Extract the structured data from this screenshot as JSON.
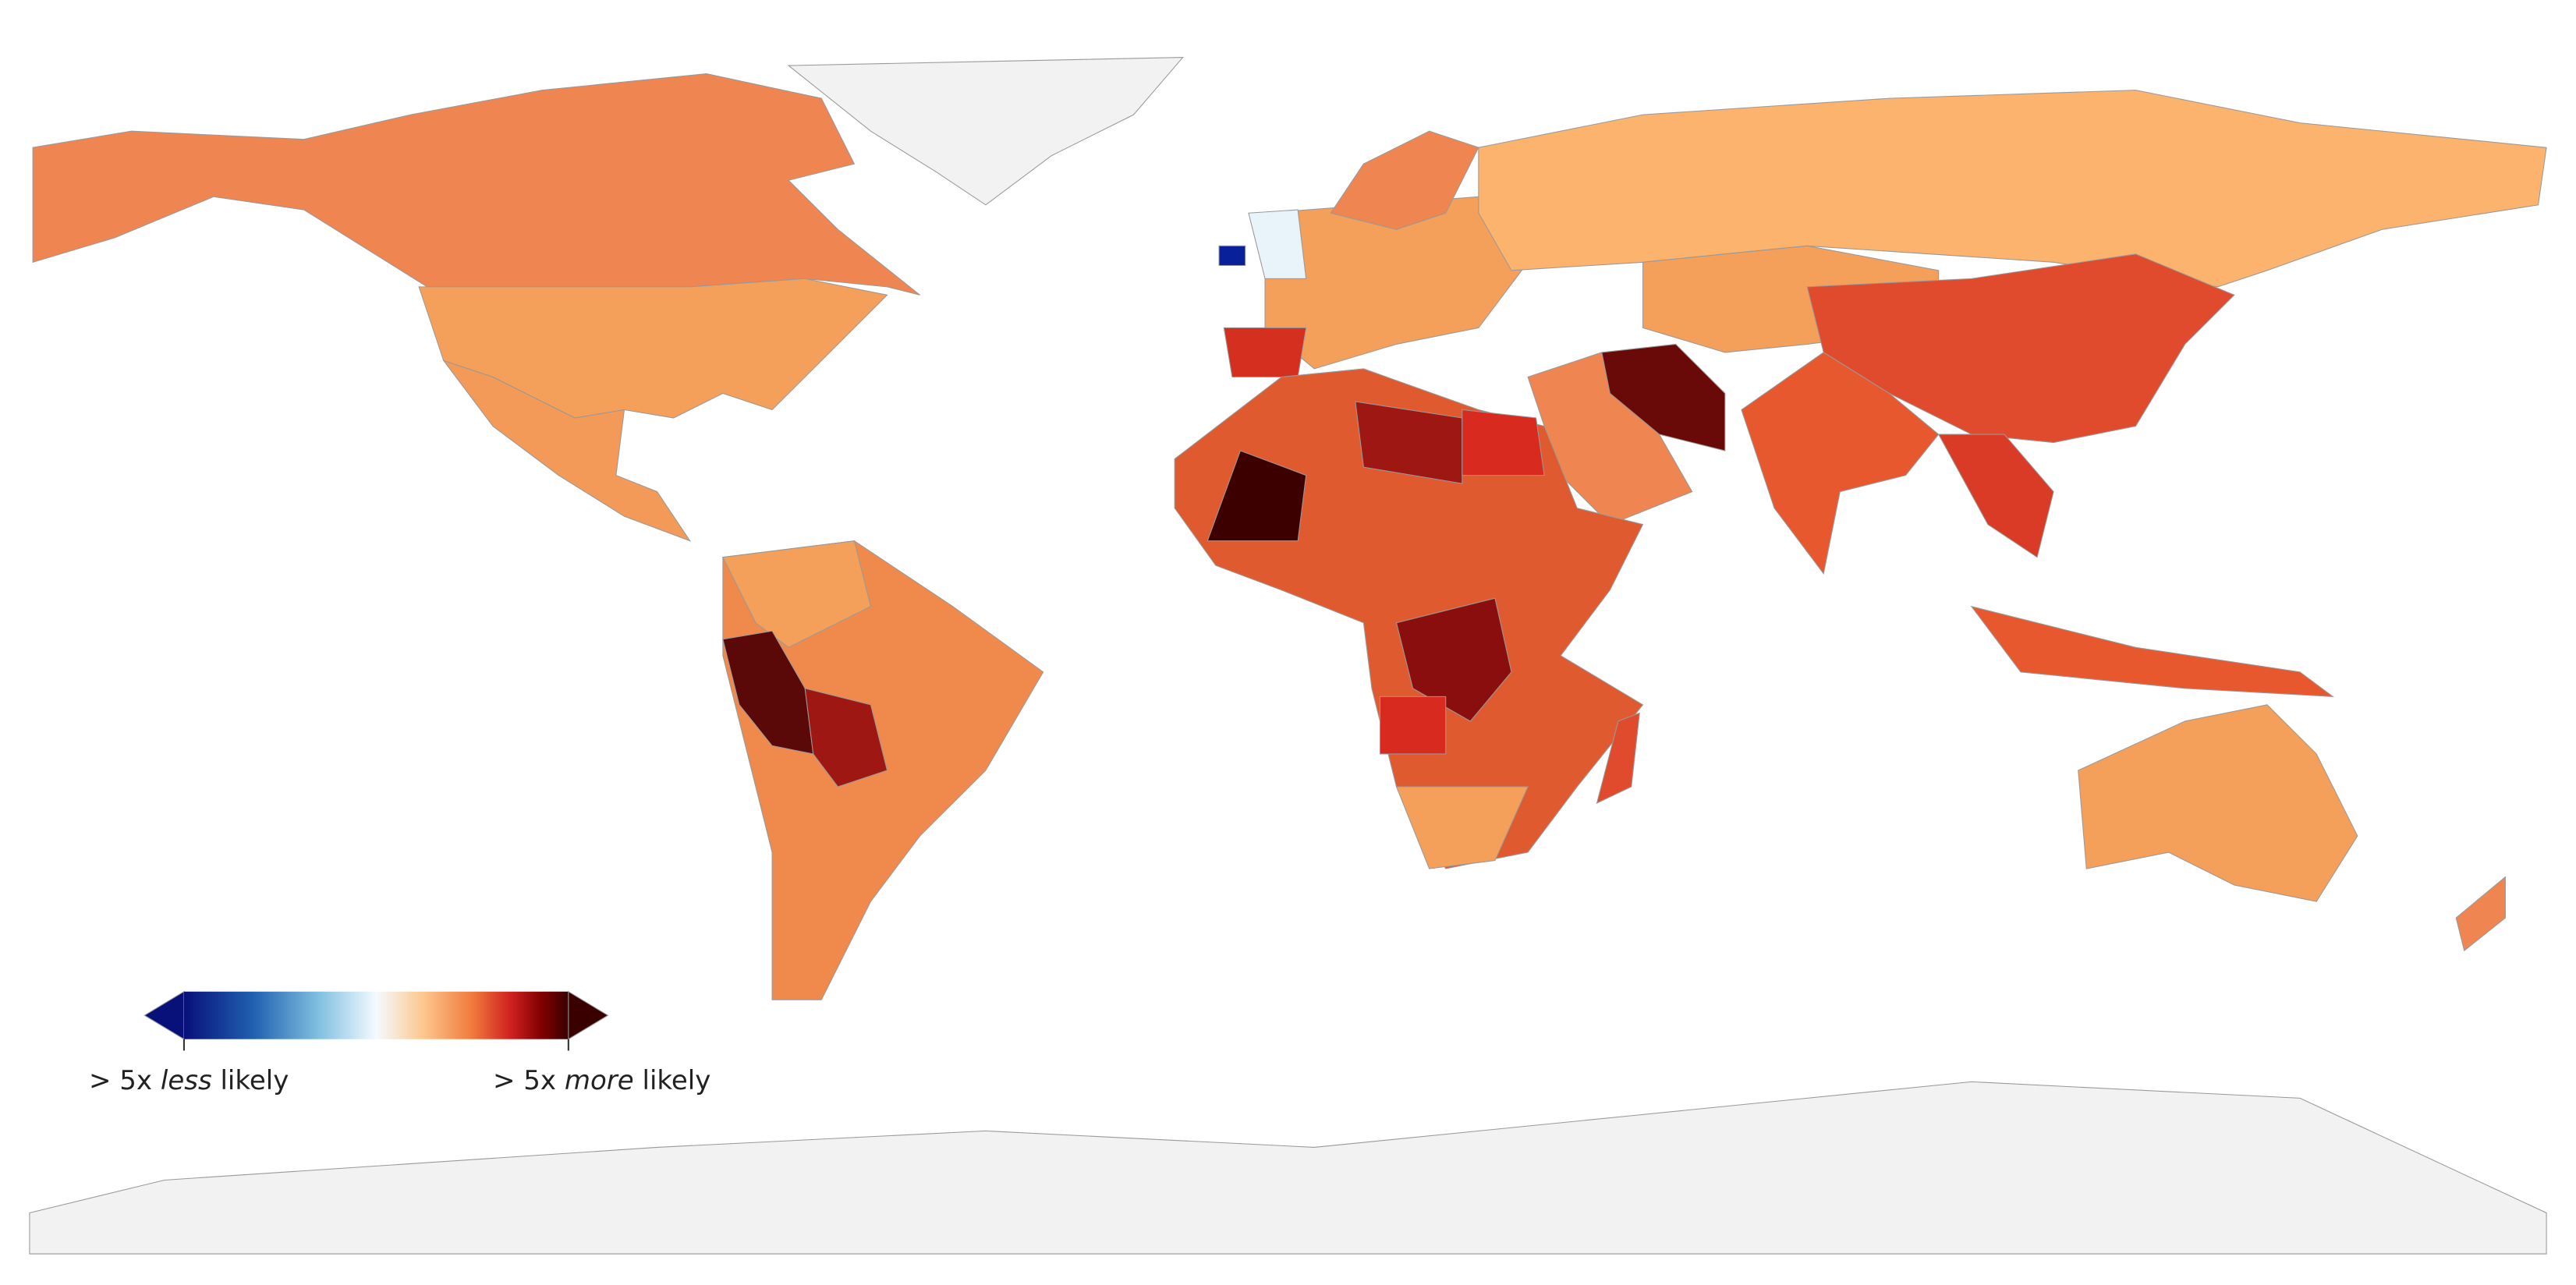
{
  "legend": {
    "left": {
      "prefix": "> 5x",
      "emphasis": "less",
      "suffix": "likely"
    },
    "right": {
      "prefix": "> 5x",
      "emphasis": "more",
      "suffix": "likely"
    }
  }
}
